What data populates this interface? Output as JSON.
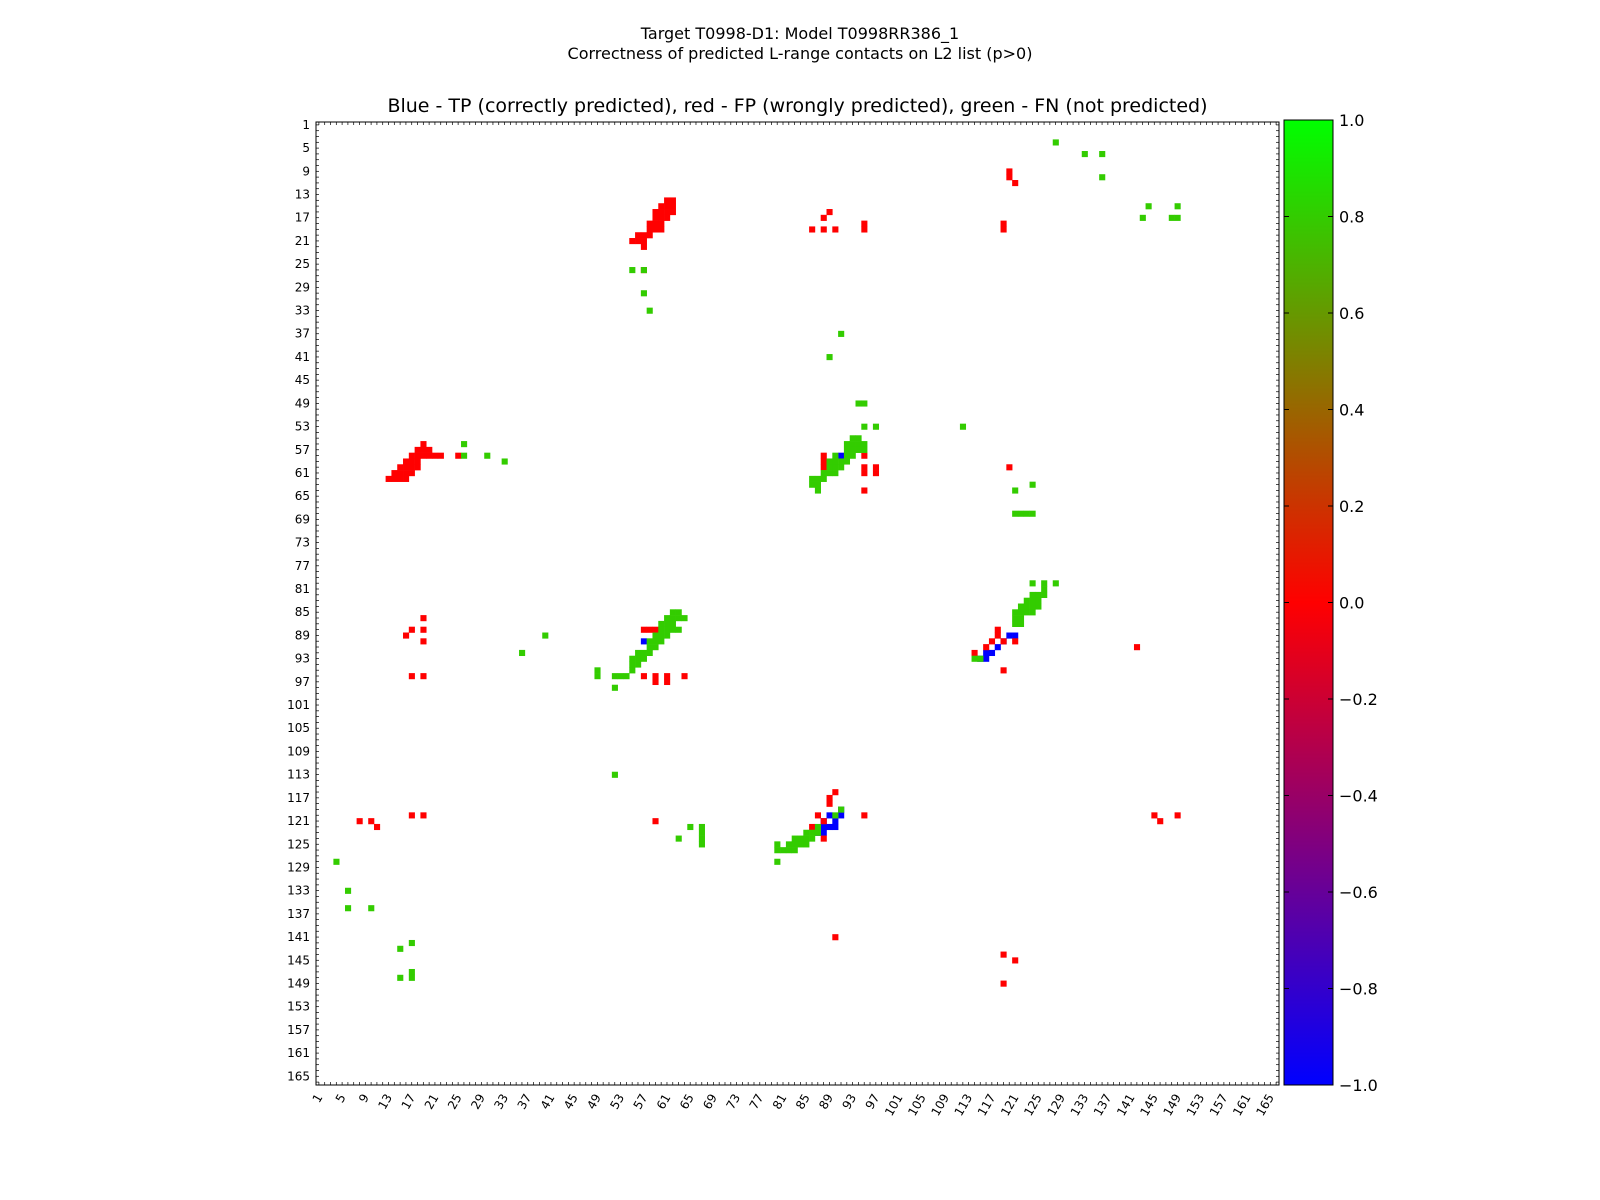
{
  "figure": {
    "title_line1": "Target T0998-D1: Model T0998RR386_1",
    "title_line2": "Correctness of predicted L-range contacts on L2 list (p>0)",
    "subtitle": "Blue - TP (correctly predicted), red - FP (wrongly predicted), green - FN (not predicted)"
  },
  "colors": {
    "tp": "#0000ff",
    "fp": "#ff0000",
    "fn": "#33cc00",
    "background": "#ffffff"
  },
  "chart_data": {
    "type": "heatmap",
    "title": "Blue - TP (correctly predicted), red - FP (wrongly predicted), green - FN (not predicted)",
    "xlabel": "",
    "ylabel": "",
    "xlim": [
      1,
      166
    ],
    "ylim": [
      1,
      166
    ],
    "y_inverted": true,
    "tick_labels": [
      "1",
      "5",
      "9",
      "13",
      "17",
      "21",
      "25",
      "29",
      "33",
      "37",
      "41",
      "45",
      "49",
      "53",
      "57",
      "61",
      "65",
      "69",
      "73",
      "77",
      "81",
      "85",
      "89",
      "93",
      "97",
      "101",
      "105",
      "109",
      "113",
      "117",
      "121",
      "125",
      "129",
      "133",
      "137",
      "141",
      "145",
      "149",
      "153",
      "157",
      "161",
      "165"
    ],
    "colorbar": {
      "min": -1.0,
      "max": 1.0,
      "ticks": [
        "1.0",
        "0.8",
        "0.6",
        "0.4",
        "0.2",
        "0.0",
        "−0.2",
        "−0.4",
        "−0.6",
        "−0.8",
        "−1.0"
      ],
      "gradient": [
        "#ff0000",
        "#00ff00"
      ],
      "gradient_low": [
        "#0000ff",
        "#ff0000"
      ]
    },
    "series": [
      {
        "name": "TP",
        "value": -1.0,
        "points": [
          [
            91,
            58
          ],
          [
            89,
            120
          ],
          [
            90,
            121
          ],
          [
            90,
            122
          ],
          [
            91,
            119
          ],
          [
            91,
            120
          ],
          [
            88,
            121
          ],
          [
            88,
            122
          ],
          [
            88,
            123
          ],
          [
            87,
            123
          ],
          [
            89,
            122
          ],
          [
            119,
            90
          ],
          [
            120,
            89
          ],
          [
            121,
            89
          ],
          [
            118,
            91
          ],
          [
            117,
            92
          ],
          [
            116,
            92
          ],
          [
            115,
            93
          ],
          [
            116,
            93
          ],
          [
            57,
            90
          ]
        ]
      },
      {
        "name": "FP",
        "value": 0.0,
        "points": [
          [
            61,
            14
          ],
          [
            62,
            14
          ],
          [
            60,
            15
          ],
          [
            61,
            15
          ],
          [
            62,
            15
          ],
          [
            59,
            16
          ],
          [
            60,
            16
          ],
          [
            61,
            16
          ],
          [
            62,
            16
          ],
          [
            59,
            17
          ],
          [
            60,
            17
          ],
          [
            61,
            17
          ],
          [
            58,
            18
          ],
          [
            59,
            18
          ],
          [
            60,
            18
          ],
          [
            58,
            19
          ],
          [
            59,
            19
          ],
          [
            60,
            19
          ],
          [
            56,
            20
          ],
          [
            57,
            20
          ],
          [
            58,
            20
          ],
          [
            55,
            21
          ],
          [
            56,
            21
          ],
          [
            57,
            21
          ],
          [
            57,
            22
          ],
          [
            57,
            26
          ],
          [
            89,
            16
          ],
          [
            88,
            17
          ],
          [
            86,
            19
          ],
          [
            88,
            19
          ],
          [
            90,
            19
          ],
          [
            95,
            18
          ],
          [
            95,
            19
          ],
          [
            120,
            9
          ],
          [
            120,
            10
          ],
          [
            121,
            11
          ],
          [
            119,
            18
          ],
          [
            119,
            19
          ],
          [
            19,
            56
          ],
          [
            18,
            57
          ],
          [
            19,
            57
          ],
          [
            20,
            57
          ],
          [
            17,
            58
          ],
          [
            18,
            58
          ],
          [
            19,
            58
          ],
          [
            20,
            58
          ],
          [
            21,
            58
          ],
          [
            22,
            58
          ],
          [
            16,
            59
          ],
          [
            17,
            59
          ],
          [
            18,
            59
          ],
          [
            15,
            60
          ],
          [
            16,
            60
          ],
          [
            17,
            60
          ],
          [
            18,
            60
          ],
          [
            14,
            61
          ],
          [
            15,
            61
          ],
          [
            16,
            61
          ],
          [
            17,
            61
          ],
          [
            13,
            62
          ],
          [
            14,
            62
          ],
          [
            15,
            62
          ],
          [
            16,
            62
          ],
          [
            25,
            58
          ],
          [
            88,
            58
          ],
          [
            88,
            59
          ],
          [
            88,
            60
          ],
          [
            95,
            58
          ],
          [
            95,
            60
          ],
          [
            97,
            60
          ],
          [
            95,
            61
          ],
          [
            97,
            61
          ],
          [
            95,
            64
          ],
          [
            120,
            60
          ],
          [
            19,
            86
          ],
          [
            17,
            88
          ],
          [
            19,
            88
          ],
          [
            16,
            89
          ],
          [
            19,
            90
          ],
          [
            17,
            96
          ],
          [
            19,
            96
          ],
          [
            57,
            88
          ],
          [
            58,
            88
          ],
          [
            59,
            88
          ],
          [
            57,
            96
          ],
          [
            59,
            96
          ],
          [
            61,
            96
          ],
          [
            64,
            96
          ],
          [
            59,
            97
          ],
          [
            61,
            97
          ],
          [
            118,
            88
          ],
          [
            118,
            89
          ],
          [
            117,
            90
          ],
          [
            116,
            91
          ],
          [
            119,
            90
          ],
          [
            121,
            90
          ],
          [
            114,
            92
          ],
          [
            119,
            95
          ],
          [
            142,
            91
          ],
          [
            90,
            116
          ],
          [
            89,
            117
          ],
          [
            89,
            118
          ],
          [
            87,
            120
          ],
          [
            88,
            121
          ],
          [
            86,
            122
          ],
          [
            88,
            124
          ],
          [
            95,
            120
          ],
          [
            8,
            121
          ],
          [
            10,
            121
          ],
          [
            11,
            122
          ],
          [
            17,
            120
          ],
          [
            19,
            120
          ],
          [
            59,
            121
          ],
          [
            145,
            120
          ],
          [
            146,
            121
          ],
          [
            149,
            120
          ],
          [
            90,
            141
          ],
          [
            119,
            144
          ],
          [
            121,
            145
          ],
          [
            119,
            149
          ]
        ]
      },
      {
        "name": "FN",
        "value": 1.0,
        "points": [
          [
            128,
            4
          ],
          [
            133,
            6
          ],
          [
            136,
            6
          ],
          [
            136,
            10
          ],
          [
            144,
            15
          ],
          [
            149,
            15
          ],
          [
            143,
            17
          ],
          [
            148,
            17
          ],
          [
            149,
            17
          ],
          [
            55,
            26
          ],
          [
            57,
            26
          ],
          [
            57,
            30
          ],
          [
            58,
            33
          ],
          [
            91,
            37
          ],
          [
            89,
            41
          ],
          [
            94,
            49
          ],
          [
            95,
            49
          ],
          [
            95,
            53
          ],
          [
            97,
            53
          ],
          [
            112,
            53
          ],
          [
            93,
            55
          ],
          [
            94,
            55
          ],
          [
            92,
            56
          ],
          [
            93,
            56
          ],
          [
            94,
            56
          ],
          [
            95,
            56
          ],
          [
            92,
            57
          ],
          [
            93,
            57
          ],
          [
            94,
            57
          ],
          [
            95,
            57
          ],
          [
            90,
            58
          ],
          [
            92,
            58
          ],
          [
            93,
            58
          ],
          [
            89,
            59
          ],
          [
            90,
            59
          ],
          [
            91,
            59
          ],
          [
            92,
            59
          ],
          [
            89,
            60
          ],
          [
            90,
            60
          ],
          [
            91,
            60
          ],
          [
            88,
            61
          ],
          [
            89,
            61
          ],
          [
            90,
            61
          ],
          [
            86,
            62
          ],
          [
            87,
            62
          ],
          [
            88,
            62
          ],
          [
            86,
            63
          ],
          [
            87,
            63
          ],
          [
            87,
            64
          ],
          [
            26,
            56
          ],
          [
            26,
            58
          ],
          [
            30,
            58
          ],
          [
            33,
            59
          ],
          [
            121,
            64
          ],
          [
            124,
            63
          ],
          [
            121,
            68
          ],
          [
            122,
            68
          ],
          [
            123,
            68
          ],
          [
            124,
            68
          ],
          [
            124,
            80
          ],
          [
            126,
            80
          ],
          [
            128,
            80
          ],
          [
            126,
            81
          ],
          [
            124,
            82
          ],
          [
            125,
            82
          ],
          [
            126,
            82
          ],
          [
            123,
            83
          ],
          [
            124,
            83
          ],
          [
            125,
            83
          ],
          [
            122,
            84
          ],
          [
            123,
            84
          ],
          [
            124,
            84
          ],
          [
            121,
            85
          ],
          [
            122,
            85
          ],
          [
            123,
            85
          ],
          [
            124,
            85
          ],
          [
            121,
            86
          ],
          [
            122,
            86
          ],
          [
            121,
            87
          ],
          [
            122,
            87
          ],
          [
            125,
            84
          ],
          [
            114,
            93
          ],
          [
            115,
            93
          ],
          [
            62,
            85
          ],
          [
            63,
            85
          ],
          [
            61,
            86
          ],
          [
            62,
            86
          ],
          [
            63,
            86
          ],
          [
            64,
            86
          ],
          [
            60,
            87
          ],
          [
            61,
            87
          ],
          [
            62,
            87
          ],
          [
            60,
            88
          ],
          [
            61,
            88
          ],
          [
            62,
            88
          ],
          [
            63,
            88
          ],
          [
            59,
            89
          ],
          [
            60,
            89
          ],
          [
            61,
            89
          ],
          [
            58,
            90
          ],
          [
            59,
            90
          ],
          [
            60,
            90
          ],
          [
            58,
            91
          ],
          [
            59,
            91
          ],
          [
            56,
            92
          ],
          [
            57,
            92
          ],
          [
            58,
            92
          ],
          [
            55,
            93
          ],
          [
            56,
            93
          ],
          [
            57,
            93
          ],
          [
            55,
            94
          ],
          [
            56,
            94
          ],
          [
            55,
            95
          ],
          [
            53,
            96
          ],
          [
            54,
            96
          ],
          [
            52,
            96
          ],
          [
            49,
            95
          ],
          [
            49,
            96
          ],
          [
            52,
            98
          ],
          [
            36,
            92
          ],
          [
            40,
            89
          ],
          [
            52,
            113
          ],
          [
            91,
            119
          ],
          [
            90,
            120
          ],
          [
            87,
            122
          ],
          [
            86,
            123
          ],
          [
            85,
            123
          ],
          [
            87,
            123
          ],
          [
            85,
            124
          ],
          [
            86,
            124
          ],
          [
            83,
            124
          ],
          [
            84,
            124
          ],
          [
            82,
            125
          ],
          [
            83,
            125
          ],
          [
            84,
            125
          ],
          [
            85,
            125
          ],
          [
            80,
            126
          ],
          [
            81,
            126
          ],
          [
            82,
            126
          ],
          [
            83,
            126
          ],
          [
            80,
            125
          ],
          [
            80,
            128
          ],
          [
            65,
            122
          ],
          [
            63,
            124
          ],
          [
            67,
            122
          ],
          [
            67,
            123
          ],
          [
            67,
            124
          ],
          [
            67,
            125
          ],
          [
            4,
            128
          ],
          [
            6,
            133
          ],
          [
            6,
            136
          ],
          [
            10,
            136
          ],
          [
            17,
            142
          ],
          [
            15,
            143
          ],
          [
            17,
            147
          ],
          [
            15,
            148
          ],
          [
            17,
            148
          ]
        ]
      }
    ]
  }
}
